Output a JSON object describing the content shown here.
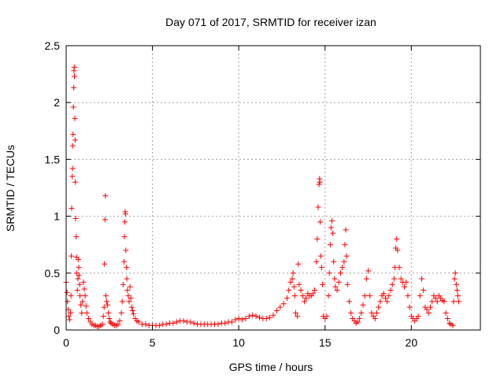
{
  "chart_data": {
    "type": "scatter",
    "title": "Day 071 of 2017, SRMTID for receiver izan",
    "xlabel": "GPS time / hours",
    "ylabel": "SRMTID / TECUs",
    "xlim": [
      0,
      24
    ],
    "ylim": [
      0,
      2.5
    ],
    "xticks": [
      0,
      5,
      10,
      15,
      20
    ],
    "xtick_labels": [
      "0",
      "5",
      "10",
      "15",
      "20"
    ],
    "yticks": [
      0,
      0.5,
      1,
      1.5,
      2,
      2.5
    ],
    "ytick_labels": [
      "0",
      "0.5",
      "1",
      "1.5",
      "2",
      "2.5"
    ],
    "grid": true,
    "marker": "+",
    "marker_color": "#ff0000",
    "series": [
      {
        "name": "SRMTID",
        "points": [
          [
            0.0,
            0.42
          ],
          [
            0.05,
            0.33
          ],
          [
            0.08,
            0.25
          ],
          [
            0.12,
            0.18
          ],
          [
            0.15,
            0.12
          ],
          [
            0.2,
            0.09
          ],
          [
            0.25,
            0.15
          ],
          [
            0.28,
            0.3
          ],
          [
            0.3,
            0.65
          ],
          [
            0.32,
            1.07
          ],
          [
            0.35,
            1.35
          ],
          [
            0.37,
            1.42
          ],
          [
            0.38,
            1.62
          ],
          [
            0.4,
            1.72
          ],
          [
            0.42,
            1.96
          ],
          [
            0.44,
            2.13
          ],
          [
            0.45,
            2.28
          ],
          [
            0.47,
            2.31
          ],
          [
            0.48,
            2.23
          ],
          [
            0.5,
            1.86
          ],
          [
            0.52,
            1.67
          ],
          [
            0.53,
            1.3
          ],
          [
            0.55,
            0.98
          ],
          [
            0.58,
            0.82
          ],
          [
            0.6,
            0.64
          ],
          [
            0.62,
            0.5
          ],
          [
            0.65,
            0.35
          ],
          [
            0.68,
            0.45
          ],
          [
            0.7,
            0.62
          ],
          [
            0.73,
            0.55
          ],
          [
            0.75,
            0.48
          ],
          [
            0.78,
            0.4
          ],
          [
            0.8,
            0.3
          ],
          [
            0.85,
            0.22
          ],
          [
            0.9,
            0.15
          ],
          [
            0.95,
            0.25
          ],
          [
            1.0,
            0.42
          ],
          [
            1.05,
            0.36
          ],
          [
            1.1,
            0.3
          ],
          [
            1.15,
            0.21
          ],
          [
            1.2,
            0.15
          ],
          [
            1.3,
            0.1
          ],
          [
            1.4,
            0.07
          ],
          [
            1.5,
            0.05
          ],
          [
            1.6,
            0.04
          ],
          [
            1.7,
            0.04
          ],
          [
            1.8,
            0.03
          ],
          [
            1.9,
            0.03
          ],
          [
            2.0,
            0.04
          ],
          [
            2.1,
            0.05
          ],
          [
            2.15,
            0.12
          ],
          [
            2.2,
            0.2
          ],
          [
            2.22,
            0.58
          ],
          [
            2.25,
            0.97
          ],
          [
            2.27,
            1.18
          ],
          [
            2.3,
            0.3
          ],
          [
            2.35,
            0.25
          ],
          [
            2.4,
            0.22
          ],
          [
            2.45,
            0.15
          ],
          [
            2.5,
            0.1
          ],
          [
            2.55,
            0.07
          ],
          [
            2.6,
            0.06
          ],
          [
            2.7,
            0.05
          ],
          [
            2.8,
            0.04
          ],
          [
            2.9,
            0.04
          ],
          [
            3.0,
            0.05
          ],
          [
            3.1,
            0.08
          ],
          [
            3.2,
            0.15
          ],
          [
            3.25,
            0.25
          ],
          [
            3.3,
            0.4
          ],
          [
            3.35,
            0.6
          ],
          [
            3.38,
            0.82
          ],
          [
            3.4,
            0.95
          ],
          [
            3.42,
            1.04
          ],
          [
            3.44,
            1.02
          ],
          [
            3.46,
            0.7
          ],
          [
            3.5,
            0.55
          ],
          [
            3.52,
            0.45
          ],
          [
            3.55,
            0.35
          ],
          [
            3.6,
            0.3
          ],
          [
            3.65,
            0.25
          ],
          [
            3.7,
            0.38
          ],
          [
            3.75,
            0.28
          ],
          [
            3.8,
            0.2
          ],
          [
            3.85,
            0.17
          ],
          [
            3.9,
            0.14
          ],
          [
            4.0,
            0.1
          ],
          [
            4.1,
            0.08
          ],
          [
            4.2,
            0.07
          ],
          [
            4.4,
            0.05
          ],
          [
            4.6,
            0.05
          ],
          [
            4.8,
            0.04
          ],
          [
            5.0,
            0.04
          ],
          [
            5.2,
            0.04
          ],
          [
            5.4,
            0.04
          ],
          [
            5.6,
            0.05
          ],
          [
            5.8,
            0.05
          ],
          [
            6.0,
            0.06
          ],
          [
            6.2,
            0.06
          ],
          [
            6.4,
            0.07
          ],
          [
            6.6,
            0.08
          ],
          [
            6.8,
            0.08
          ],
          [
            7.0,
            0.07
          ],
          [
            7.2,
            0.07
          ],
          [
            7.4,
            0.06
          ],
          [
            7.6,
            0.05
          ],
          [
            7.8,
            0.05
          ],
          [
            8.0,
            0.05
          ],
          [
            8.2,
            0.05
          ],
          [
            8.4,
            0.05
          ],
          [
            8.6,
            0.05
          ],
          [
            8.8,
            0.05
          ],
          [
            9.0,
            0.06
          ],
          [
            9.2,
            0.06
          ],
          [
            9.4,
            0.07
          ],
          [
            9.6,
            0.07
          ],
          [
            9.8,
            0.09
          ],
          [
            10.0,
            0.1
          ],
          [
            10.2,
            0.09
          ],
          [
            10.4,
            0.1
          ],
          [
            10.6,
            0.12
          ],
          [
            10.8,
            0.13
          ],
          [
            11.0,
            0.12
          ],
          [
            11.2,
            0.11
          ],
          [
            11.4,
            0.1
          ],
          [
            11.6,
            0.1
          ],
          [
            11.8,
            0.11
          ],
          [
            12.0,
            0.13
          ],
          [
            12.2,
            0.17
          ],
          [
            12.4,
            0.2
          ],
          [
            12.6,
            0.23
          ],
          [
            12.8,
            0.28
          ],
          [
            12.9,
            0.35
          ],
          [
            13.0,
            0.42
          ],
          [
            13.1,
            0.45
          ],
          [
            13.15,
            0.5
          ],
          [
            13.2,
            0.38
          ],
          [
            13.25,
            0.3
          ],
          [
            13.3,
            0.15
          ],
          [
            13.4,
            0.12
          ],
          [
            13.45,
            0.58
          ],
          [
            13.5,
            0.4
          ],
          [
            13.6,
            0.35
          ],
          [
            13.7,
            0.3
          ],
          [
            13.8,
            0.25
          ],
          [
            13.9,
            0.28
          ],
          [
            14.0,
            0.32
          ],
          [
            14.1,
            0.3
          ],
          [
            14.2,
            0.3
          ],
          [
            14.3,
            0.32
          ],
          [
            14.4,
            0.35
          ],
          [
            14.5,
            0.6
          ],
          [
            14.55,
            0.8
          ],
          [
            14.6,
            1.08
          ],
          [
            14.65,
            1.28
          ],
          [
            14.68,
            1.33
          ],
          [
            14.7,
            1.3
          ],
          [
            14.72,
            0.95
          ],
          [
            14.75,
            0.65
          ],
          [
            14.8,
            0.55
          ],
          [
            14.85,
            0.4
          ],
          [
            14.9,
            0.12
          ],
          [
            15.0,
            0.1
          ],
          [
            15.1,
            0.12
          ],
          [
            15.2,
            0.3
          ],
          [
            15.25,
            0.5
          ],
          [
            15.3,
            0.75
          ],
          [
            15.35,
            0.9
          ],
          [
            15.4,
            0.96
          ],
          [
            15.45,
            0.85
          ],
          [
            15.5,
            0.6
          ],
          [
            15.55,
            0.45
          ],
          [
            15.6,
            0.38
          ],
          [
            15.7,
            0.35
          ],
          [
            15.8,
            0.42
          ],
          [
            15.9,
            0.5
          ],
          [
            16.0,
            0.55
          ],
          [
            16.1,
            0.6
          ],
          [
            16.15,
            0.75
          ],
          [
            16.2,
            0.88
          ],
          [
            16.25,
            0.65
          ],
          [
            16.3,
            0.4
          ],
          [
            16.4,
            0.25
          ],
          [
            16.5,
            0.15
          ],
          [
            16.6,
            0.1
          ],
          [
            16.7,
            0.08
          ],
          [
            16.8,
            0.06
          ],
          [
            16.9,
            0.07
          ],
          [
            17.0,
            0.1
          ],
          [
            17.1,
            0.15
          ],
          [
            17.2,
            0.22
          ],
          [
            17.3,
            0.3
          ],
          [
            17.4,
            0.45
          ],
          [
            17.5,
            0.52
          ],
          [
            17.6,
            0.3
          ],
          [
            17.7,
            0.15
          ],
          [
            17.8,
            0.12
          ],
          [
            17.9,
            0.1
          ],
          [
            18.0,
            0.15
          ],
          [
            18.1,
            0.2
          ],
          [
            18.2,
            0.25
          ],
          [
            18.3,
            0.3
          ],
          [
            18.4,
            0.32
          ],
          [
            18.5,
            0.28
          ],
          [
            18.6,
            0.25
          ],
          [
            18.7,
            0.3
          ],
          [
            18.8,
            0.35
          ],
          [
            18.9,
            0.4
          ],
          [
            19.0,
            0.45
          ],
          [
            19.05,
            0.55
          ],
          [
            19.1,
            0.72
          ],
          [
            19.15,
            0.8
          ],
          [
            19.2,
            0.7
          ],
          [
            19.3,
            0.55
          ],
          [
            19.4,
            0.45
          ],
          [
            19.5,
            0.42
          ],
          [
            19.6,
            0.38
          ],
          [
            19.7,
            0.42
          ],
          [
            19.8,
            0.3
          ],
          [
            19.9,
            0.2
          ],
          [
            20.0,
            0.12
          ],
          [
            20.1,
            0.1
          ],
          [
            20.2,
            0.08
          ],
          [
            20.3,
            0.1
          ],
          [
            20.4,
            0.12
          ],
          [
            20.5,
            0.3
          ],
          [
            20.6,
            0.45
          ],
          [
            20.7,
            0.35
          ],
          [
            20.8,
            0.2
          ],
          [
            20.9,
            0.18
          ],
          [
            21.0,
            0.15
          ],
          [
            21.1,
            0.2
          ],
          [
            21.2,
            0.25
          ],
          [
            21.3,
            0.3
          ],
          [
            21.4,
            0.28
          ],
          [
            21.5,
            0.25
          ],
          [
            21.6,
            0.3
          ],
          [
            21.7,
            0.28
          ],
          [
            21.8,
            0.26
          ],
          [
            21.9,
            0.25
          ],
          [
            22.0,
            0.15
          ],
          [
            22.1,
            0.1
          ],
          [
            22.2,
            0.06
          ],
          [
            22.3,
            0.05
          ],
          [
            22.4,
            0.04
          ],
          [
            22.45,
            0.25
          ],
          [
            22.5,
            0.45
          ],
          [
            22.55,
            0.5
          ],
          [
            22.6,
            0.4
          ],
          [
            22.65,
            0.35
          ],
          [
            22.7,
            0.3
          ],
          [
            22.75,
            0.25
          ]
        ]
      }
    ]
  }
}
